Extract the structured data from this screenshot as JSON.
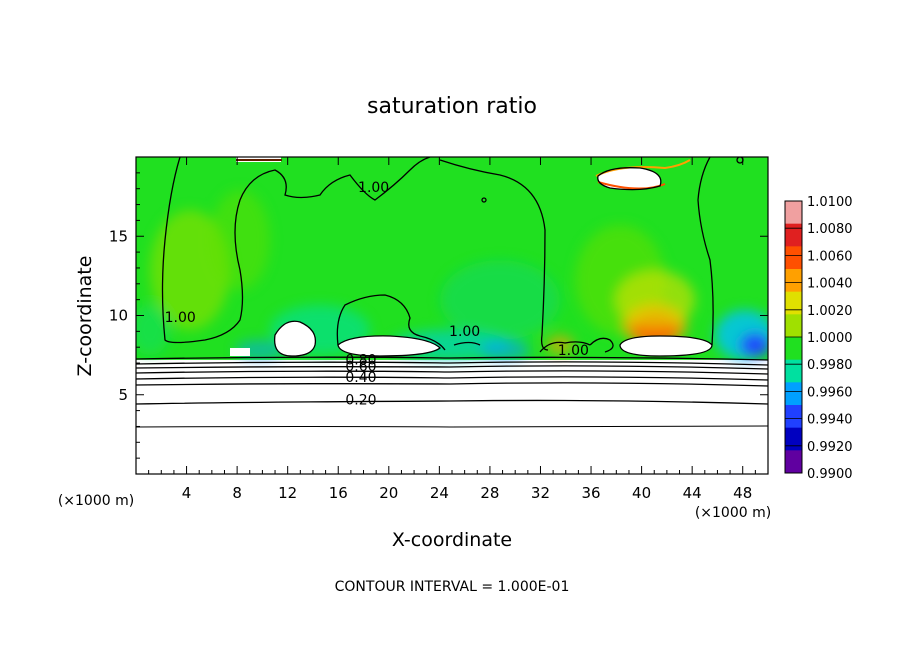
{
  "chart_data": {
    "type": "heatmap",
    "title": "saturation ratio",
    "xlabel": "X-coordinate",
    "ylabel": "Z-coordinate",
    "x_unit_left": "(×1000 m)",
    "x_unit_right": "(×1000 m)",
    "xlim": [
      0,
      50
    ],
    "ylim": [
      0,
      20
    ],
    "x_ticks": [
      "4",
      "8",
      "12",
      "16",
      "20",
      "24",
      "28",
      "32",
      "36",
      "40",
      "44",
      "48"
    ],
    "x_tick_values": [
      4,
      8,
      12,
      16,
      20,
      24,
      28,
      32,
      36,
      40,
      44,
      48
    ],
    "y_ticks": [
      "5",
      "10",
      "15"
    ],
    "y_tick_values": [
      5,
      10,
      15
    ],
    "colorbar": {
      "placement": "right",
      "labels": [
        "1.0100",
        "1.0080",
        "1.0060",
        "1.0040",
        "1.0020",
        "1.0000",
        "0.9980",
        "0.9960",
        "0.9940",
        "0.9920",
        "0.9900"
      ],
      "values": [
        1.01,
        1.008,
        1.006,
        1.004,
        1.002,
        1.0,
        0.998,
        0.996,
        0.994,
        0.992,
        0.99
      ],
      "colors": [
        "#f0a0a0",
        "#e02020",
        "#ff5000",
        "#ffa000",
        "#e0e000",
        "#a0e000",
        "#20e020",
        "#00e0a0",
        "#00a0ff",
        "#2040ff",
        "#0000c0",
        "#6000a0"
      ]
    },
    "contour_labels": [
      {
        "text": "1.00",
        "x": 3.5,
        "z": 9.6
      },
      {
        "text": "1.00",
        "x": 18.8,
        "z": 17.8
      },
      {
        "text": "1.00",
        "x": 26.0,
        "z": 8.7
      },
      {
        "text": "1.00",
        "x": 34.6,
        "z": 7.5
      },
      {
        "text": "0.80",
        "x": 17.8,
        "z": 6.9
      },
      {
        "text": "0.60",
        "x": 17.8,
        "z": 6.5
      },
      {
        "text": "0.40",
        "x": 17.8,
        "z": 5.8
      },
      {
        "text": "0.20",
        "x": 17.8,
        "z": 4.4
      }
    ],
    "cloud_top_z": 7.2,
    "footer": "CONTOUR INTERVAL = 1.000E-01"
  },
  "legend_values": {
    "background_color": "#ffffff",
    "field_color": "#20e020"
  }
}
